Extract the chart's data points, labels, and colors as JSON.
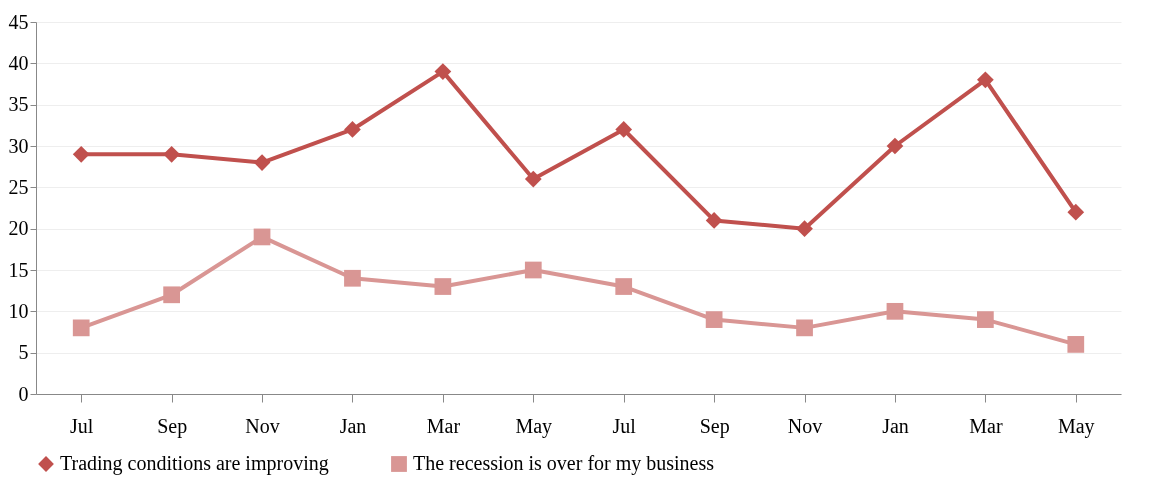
{
  "chart_data": {
    "type": "line",
    "categories": [
      "Jul",
      "Sep",
      "Nov",
      "Jan",
      "Mar",
      "May",
      "Jul",
      "Sep",
      "Nov",
      "Jan",
      "Mar",
      "May"
    ],
    "series": [
      {
        "name": "Trading conditions are improving",
        "color": "#c0504d",
        "marker": "diamond",
        "values": [
          29,
          29,
          28,
          32,
          39,
          26,
          32,
          21,
          20,
          30,
          38,
          22
        ]
      },
      {
        "name": "The recession is over for my business",
        "color": "#d99694",
        "marker": "square",
        "values": [
          8,
          12,
          19,
          14,
          13,
          15,
          13,
          9,
          8,
          10,
          9,
          6
        ]
      }
    ],
    "ylim": [
      0,
      45
    ],
    "yticks": [
      0,
      5,
      10,
      15,
      20,
      25,
      30,
      35,
      40,
      45
    ],
    "grid": "y",
    "legend": "bottom"
  }
}
